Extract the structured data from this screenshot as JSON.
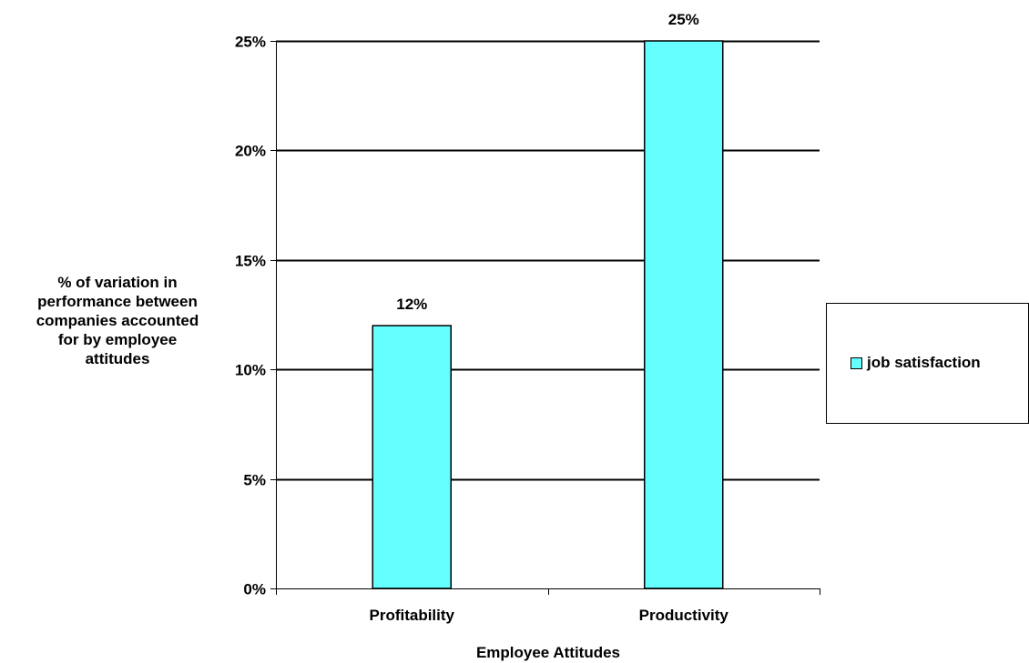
{
  "chart_data": {
    "type": "bar",
    "categories": [
      "Profitability",
      "Productivity"
    ],
    "series": [
      {
        "name": "job satisfaction",
        "values": [
          12,
          25
        ],
        "data_labels": [
          "12%",
          "25%"
        ],
        "color": "#66FFFF"
      }
    ],
    "title": "",
    "xlabel": "Employee Attitudes",
    "ylabel_lines": [
      "% of variation in",
      "performance between",
      "companies accounted",
      "for by employee",
      "attitudes"
    ],
    "ylim": [
      0,
      25
    ],
    "yticks": [
      0,
      5,
      10,
      15,
      20,
      25
    ],
    "ytick_labels": [
      "0%",
      "5%",
      "10%",
      "15%",
      "20%",
      "25%"
    ],
    "grid": true,
    "legend_position": "right"
  }
}
